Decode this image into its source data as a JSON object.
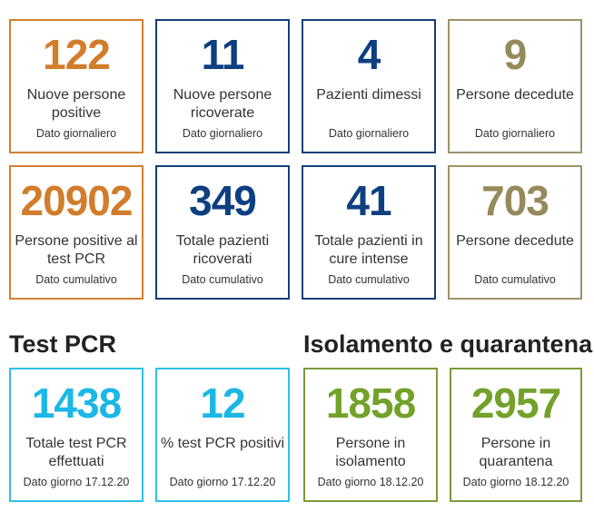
{
  "daily": [
    {
      "value": "122",
      "label": "Nuove persone positive",
      "sub": "Dato giornaliero"
    },
    {
      "value": "11",
      "label": "Nuove persone ricoverate",
      "sub": "Dato giornaliero"
    },
    {
      "value": "4",
      "label": "Pazienti dimessi",
      "sub": "Dato giornaliero"
    },
    {
      "value": "9",
      "label": "Persone decedute",
      "sub": "Dato giornaliero"
    }
  ],
  "cumulative": [
    {
      "value": "20902",
      "label": "Persone positive al test PCR",
      "sub": "Dato cumulativo"
    },
    {
      "value": "349",
      "label": "Totale pazienti ricoverati",
      "sub": "Dato cumulativo"
    },
    {
      "value": "41",
      "label": "Totale pazienti in cure intense",
      "sub": "Dato cumulativo"
    },
    {
      "value": "703",
      "label": "Persone decedute",
      "sub": "Dato cumulativo"
    }
  ],
  "sections": {
    "pcr_title": "Test PCR",
    "isolation_title": "Isolamento e quarantena"
  },
  "pcr": [
    {
      "value": "1438",
      "label": "Totale test PCR effettuati",
      "sub": "Dato giorno 17.12.20"
    },
    {
      "value": "12",
      "label": "% test PCR positivi",
      "sub": "Dato giorno 17.12.20"
    }
  ],
  "isolation": [
    {
      "value": "1858",
      "label": "Persone in isolamento",
      "sub": "Dato giorno 18.12.20"
    },
    {
      "value": "2957",
      "label": "Persone in quarantena",
      "sub": "Dato giorno 18.12.20"
    }
  ],
  "colors": {
    "orange": "#d17d2b",
    "navy": "#0e3f80",
    "olive": "#958a5a",
    "cyan": "#1bb7e6",
    "green": "#73a12a"
  }
}
